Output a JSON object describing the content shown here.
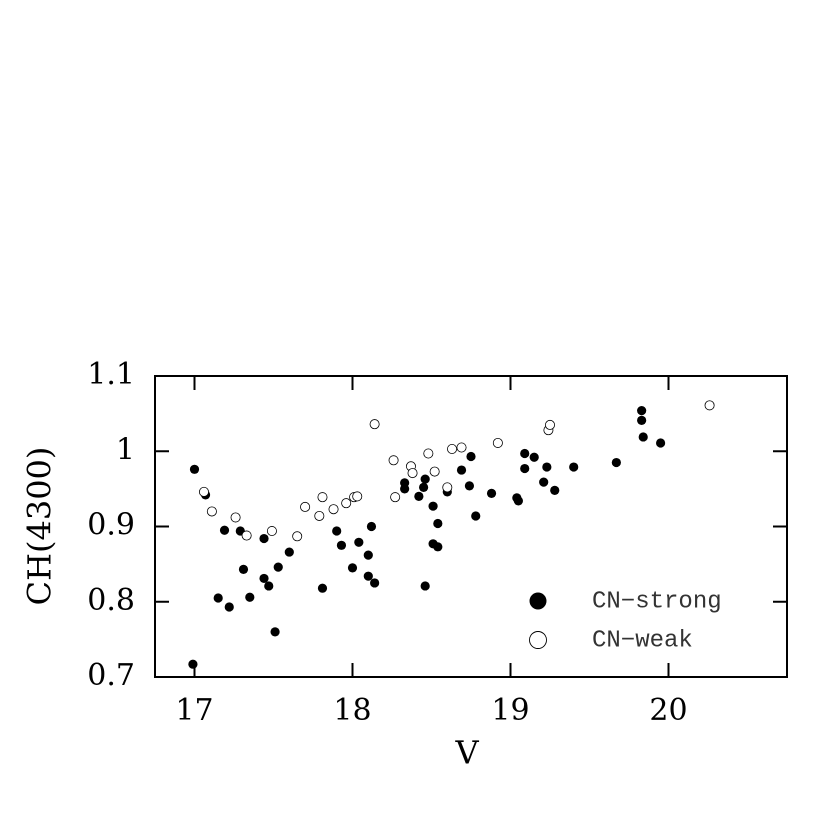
{
  "chart_data": {
    "type": "scatter",
    "xlabel": "V",
    "ylabel": "CH(4300)",
    "xlim": [
      16.75,
      20.75
    ],
    "ylim": [
      0.7,
      1.1
    ],
    "xticks": [
      17,
      18,
      19,
      20
    ],
    "yticks": [
      0.7,
      0.8,
      0.9,
      1,
      1.1
    ],
    "series": [
      {
        "name": "CN−strong",
        "color": "#000000",
        "marker": "filled",
        "x": [
          17.0,
          17.07,
          17.15,
          17.19,
          17.22,
          17.29,
          17.31,
          17.35,
          17.44,
          17.44,
          17.47,
          17.51,
          17.53,
          17.6,
          16.99,
          17.81,
          17.9,
          17.93,
          18.0,
          18.04,
          18.1,
          18.12,
          18.1,
          18.14,
          18.33,
          18.33,
          18.42,
          18.45,
          18.46,
          18.46,
          18.51,
          18.51,
          18.54,
          18.54,
          18.6,
          18.69,
          18.74,
          18.75,
          18.78,
          18.88,
          19.04,
          19.05,
          19.09,
          19.09,
          19.15,
          19.21,
          19.23,
          19.28,
          19.4,
          19.67,
          19.83,
          19.83,
          19.84,
          19.95
        ],
        "values": [
          0.976,
          0.942,
          0.805,
          0.895,
          0.793,
          0.894,
          0.843,
          0.806,
          0.884,
          0.831,
          0.821,
          0.76,
          0.846,
          0.866,
          0.717,
          0.818,
          0.894,
          0.875,
          0.845,
          0.879,
          0.862,
          0.9,
          0.834,
          0.825,
          0.958,
          0.95,
          0.94,
          0.952,
          0.963,
          0.821,
          0.927,
          0.877,
          0.873,
          0.904,
          0.946,
          0.975,
          0.954,
          0.993,
          0.914,
          0.944,
          0.938,
          0.934,
          0.997,
          0.977,
          0.992,
          0.959,
          0.979,
          0.948,
          0.979,
          0.985,
          1.054,
          1.041,
          1.019,
          1.011
        ]
      },
      {
        "name": "CN−weak",
        "color": "#000000",
        "marker": "open",
        "x": [
          17.06,
          17.11,
          17.26,
          17.33,
          17.49,
          17.65,
          17.7,
          17.79,
          17.81,
          17.88,
          17.96,
          18.01,
          18.03,
          18.14,
          18.26,
          18.27,
          18.37,
          18.38,
          18.48,
          18.52,
          18.6,
          18.63,
          18.69,
          18.92,
          19.24,
          19.25,
          20.26
        ],
        "values": [
          0.946,
          0.92,
          0.912,
          0.888,
          0.894,
          0.887,
          0.926,
          0.914,
          0.939,
          0.923,
          0.931,
          0.939,
          0.94,
          1.036,
          0.988,
          0.939,
          0.98,
          0.971,
          0.997,
          0.973,
          0.952,
          1.003,
          1.005,
          1.011,
          1.028,
          1.035,
          1.061
        ]
      }
    ]
  }
}
